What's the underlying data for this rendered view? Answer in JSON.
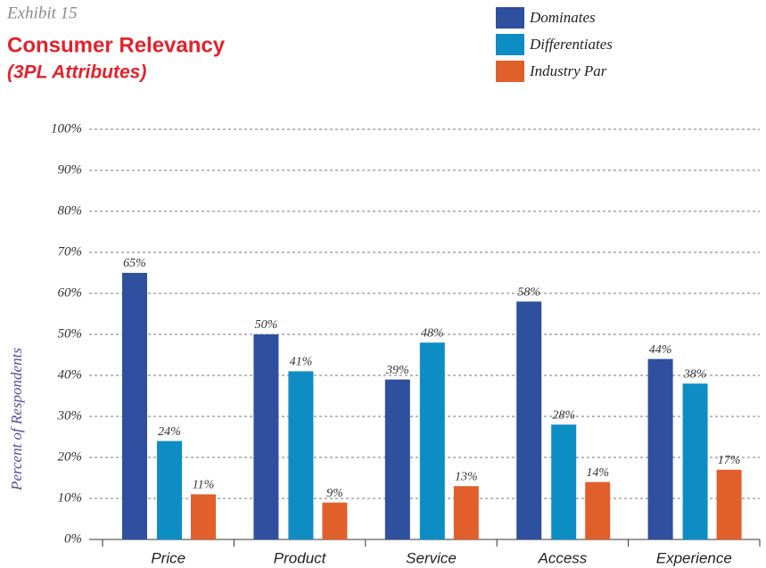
{
  "chart_data": {
    "type": "bar",
    "kicker": "Exhibit 15",
    "title": "Consumer Relevancy",
    "subtitle": "(3PL Attributes)",
    "y_label": "Percent of Respondents",
    "categories": [
      "Price",
      "Product",
      "Service",
      "Access",
      "Experience"
    ],
    "series": [
      {
        "name": "Dominates",
        "color": "#2f4f9f",
        "values": [
          65,
          50,
          39,
          58,
          44
        ],
        "value_labels": [
          "65%",
          "50%",
          "39%",
          "58%",
          "44%"
        ]
      },
      {
        "name": "Differentiates",
        "color": "#0e8dc5",
        "values": [
          24,
          41,
          48,
          28,
          38
        ],
        "value_labels": [
          "24%",
          "41%",
          "48%",
          "28%",
          "38%"
        ]
      },
      {
        "name": "Industry Par",
        "color": "#e05f2a",
        "values": [
          11,
          9,
          13,
          14,
          17
        ],
        "value_labels": [
          "11%",
          "9%",
          "13%",
          "14%",
          "17%"
        ]
      }
    ],
    "ylim": [
      0,
      100
    ],
    "yticks": [
      {
        "value": 0,
        "label": "0%"
      },
      {
        "value": 10,
        "label": "10%"
      },
      {
        "value": 20,
        "label": "20%"
      },
      {
        "value": 30,
        "label": "30%"
      },
      {
        "value": 40,
        "label": "40%"
      },
      {
        "value": 50,
        "label": "50%"
      },
      {
        "value": 60,
        "label": "60%"
      },
      {
        "value": 70,
        "label": "70%"
      },
      {
        "value": 80,
        "label": "80%"
      },
      {
        "value": 90,
        "label": "90%"
      },
      {
        "value": 100,
        "label": "100%"
      }
    ],
    "grid": true
  }
}
